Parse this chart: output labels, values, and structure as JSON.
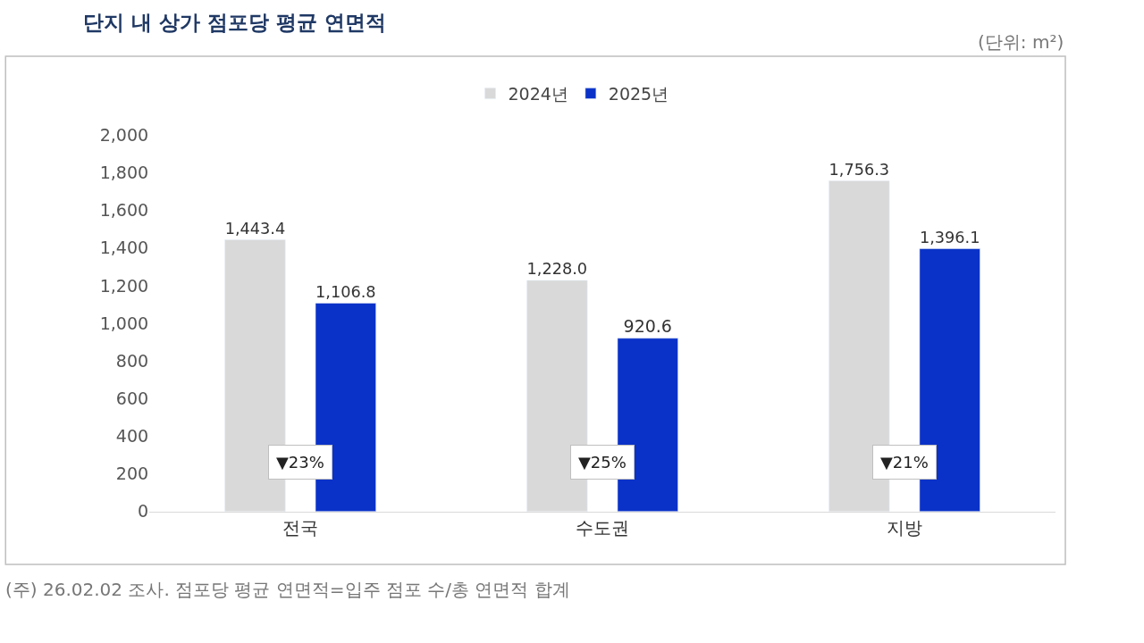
{
  "chart_data": {
    "type": "bar",
    "title": "단지 내 상가 점포당 평균 연면적",
    "categories": [
      "전국",
      "수도권",
      "지방"
    ],
    "series": [
      {
        "name": "2024년",
        "color": "#d9d9d9",
        "values": [
          1443.4,
          1228.0,
          1756.3
        ],
        "value_labels": [
          "1,443.4",
          "1,228.0",
          "1,756.3"
        ]
      },
      {
        "name": "2025년",
        "color": "#0a32c8",
        "values": [
          1106.8,
          920.6,
          1396.1
        ],
        "value_labels": [
          "1,106.8",
          "920.6",
          "1,396.1"
        ]
      }
    ],
    "ylim": [
      0,
      2000
    ],
    "yticks": [
      0,
      {
        "value": 200,
        "label": "200"
      },
      {
        "value": 400,
        "label": "400"
      },
      {
        "value": 600,
        "label": "600"
      },
      {
        "value": 800,
        "label": "800"
      },
      {
        "value": 1000,
        "label": "1,000"
      },
      {
        "value": 1200,
        "label": "1,200"
      },
      {
        "value": 1400,
        "label": "1,400"
      },
      {
        "value": 1600,
        "label": "1,600"
      },
      {
        "value": 1800,
        "label": "1,800"
      },
      {
        "value": 2000,
        "label": "2,000"
      }
    ],
    "legend": "top",
    "annotations": [
      "(단위: m²)",
      "▼23%",
      "▼25%",
      "▼21%",
      "(주) 26.02.02 조사. 점포당 평균 연면적=입주 점포 수/총 연면적 합계"
    ]
  }
}
